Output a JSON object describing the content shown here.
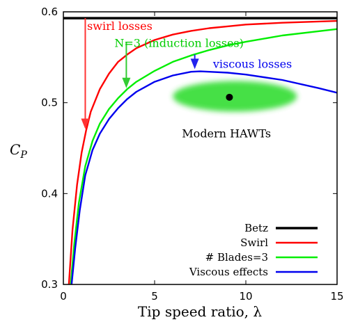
{
  "chart_data": {
    "type": "line",
    "xlabel": "Tip speed ratio, λ",
    "ylabel": "C_P",
    "xlim": [
      0,
      15
    ],
    "ylim": [
      0.3,
      0.6
    ],
    "xticks": [
      "0",
      "5",
      "10",
      "15"
    ],
    "yticks": [
      "0.3",
      "0.4",
      "0.5",
      "0.6"
    ],
    "grid": false,
    "legend_position": "bottom-right",
    "series": [
      {
        "name": "Betz",
        "color": "#000000",
        "x": [
          0,
          15
        ],
        "y": [
          0.593,
          0.593
        ]
      },
      {
        "name": "Swirl",
        "color": "#ff0000",
        "x": [
          0.3,
          0.5,
          0.75,
          1,
          1.25,
          1.5,
          2,
          2.5,
          3,
          3.5,
          4,
          5,
          6,
          7,
          8,
          9,
          10,
          12,
          15
        ],
        "y": [
          0.3,
          0.36,
          0.41,
          0.445,
          0.47,
          0.49,
          0.515,
          0.532,
          0.545,
          0.553,
          0.56,
          0.569,
          0.575,
          0.579,
          0.582,
          0.584,
          0.586,
          0.588,
          0.59
        ]
      },
      {
        "name": "# Blades=3",
        "color": "#00ee00",
        "x": [
          0.4,
          0.6,
          0.85,
          1.2,
          1.6,
          2,
          2.5,
          3,
          3.5,
          4,
          5,
          6,
          7,
          8,
          9,
          10,
          12,
          15
        ],
        "y": [
          0.3,
          0.345,
          0.39,
          0.43,
          0.458,
          0.477,
          0.493,
          0.505,
          0.515,
          0.523,
          0.535,
          0.545,
          0.552,
          0.558,
          0.563,
          0.567,
          0.574,
          0.581
        ]
      },
      {
        "name": "Viscous effects",
        "color": "#0000ee",
        "x": [
          0.45,
          0.65,
          0.9,
          1.2,
          1.6,
          2,
          2.5,
          3,
          3.5,
          4,
          5,
          6,
          7,
          7.5,
          8,
          9,
          10,
          12,
          14,
          15
        ],
        "y": [
          0.3,
          0.34,
          0.382,
          0.42,
          0.448,
          0.466,
          0.482,
          0.494,
          0.504,
          0.512,
          0.523,
          0.53,
          0.534,
          0.5345,
          0.534,
          0.533,
          0.531,
          0.525,
          0.516,
          0.511
        ]
      }
    ],
    "annotations": [
      {
        "text": "swirl losses",
        "color": "#ff0000",
        "x": 1.3,
        "y": 0.58
      },
      {
        "text": "N=3 (induction losses)",
        "color": "#00cc00",
        "x": 2.8,
        "y": 0.56
      },
      {
        "text": "viscous losses",
        "color": "#0000ee",
        "x": 8.2,
        "y": 0.538
      },
      {
        "text": "Modern HAWTs",
        "color": "#000000",
        "x": 6.5,
        "y": 0.462
      }
    ],
    "region": {
      "name": "Modern HAWTs",
      "x_range": [
        6,
        12.8
      ],
      "y_center": 0.507
    },
    "region_point": {
      "x": 9.1,
      "y": 0.506
    }
  }
}
